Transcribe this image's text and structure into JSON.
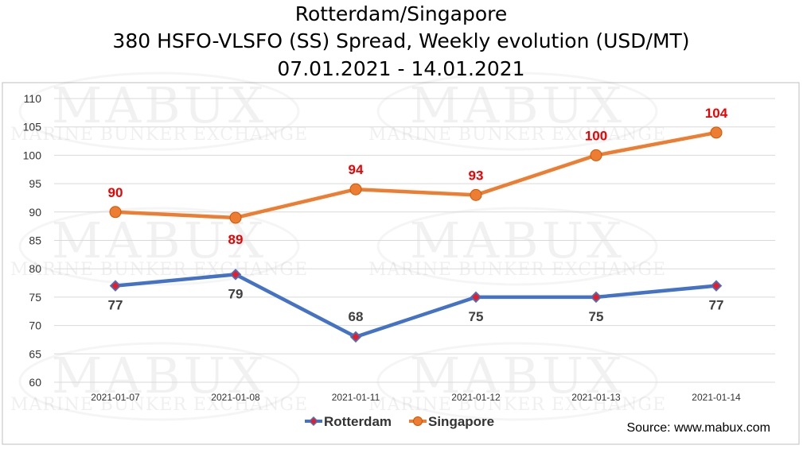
{
  "chart_data": {
    "type": "line",
    "title_lines": [
      "Rotterdam/Singapore",
      "380 HSFO-VLSFO (SS) Spread, Weekly evolution (USD/MT)",
      "07.01.2021 - 14.01.2021"
    ],
    "categories": [
      "2021-01-07",
      "2021-01-08",
      "2021-01-11",
      "2021-01-12",
      "2021-01-13",
      "2021-01-14"
    ],
    "series": [
      {
        "name": "Rotterdam",
        "values": [
          77,
          79,
          68,
          75,
          75,
          77
        ],
        "color": "#4472c4",
        "marker": "diamond",
        "marker_fill": "#ed1c24",
        "label_color": "#404040",
        "label_position": "below"
      },
      {
        "name": "Singapore",
        "values": [
          90,
          89,
          94,
          93,
          100,
          104
        ],
        "color": "#ed7d31",
        "marker": "circle",
        "marker_fill": "#ed7d31",
        "label_color": "#ee0000",
        "label_position": "above"
      }
    ],
    "ylim": [
      60,
      110
    ],
    "yticks": [
      60,
      65,
      70,
      75,
      80,
      85,
      90,
      95,
      100,
      105,
      110
    ],
    "grid": true,
    "legend_position": "bottom-center",
    "xlabel": "",
    "ylabel": ""
  },
  "source_text": "Source: www.mabux.com",
  "watermark": {
    "logo": "MABUX",
    "subtitle": "MARINE BUNKER EXCHANGE"
  }
}
